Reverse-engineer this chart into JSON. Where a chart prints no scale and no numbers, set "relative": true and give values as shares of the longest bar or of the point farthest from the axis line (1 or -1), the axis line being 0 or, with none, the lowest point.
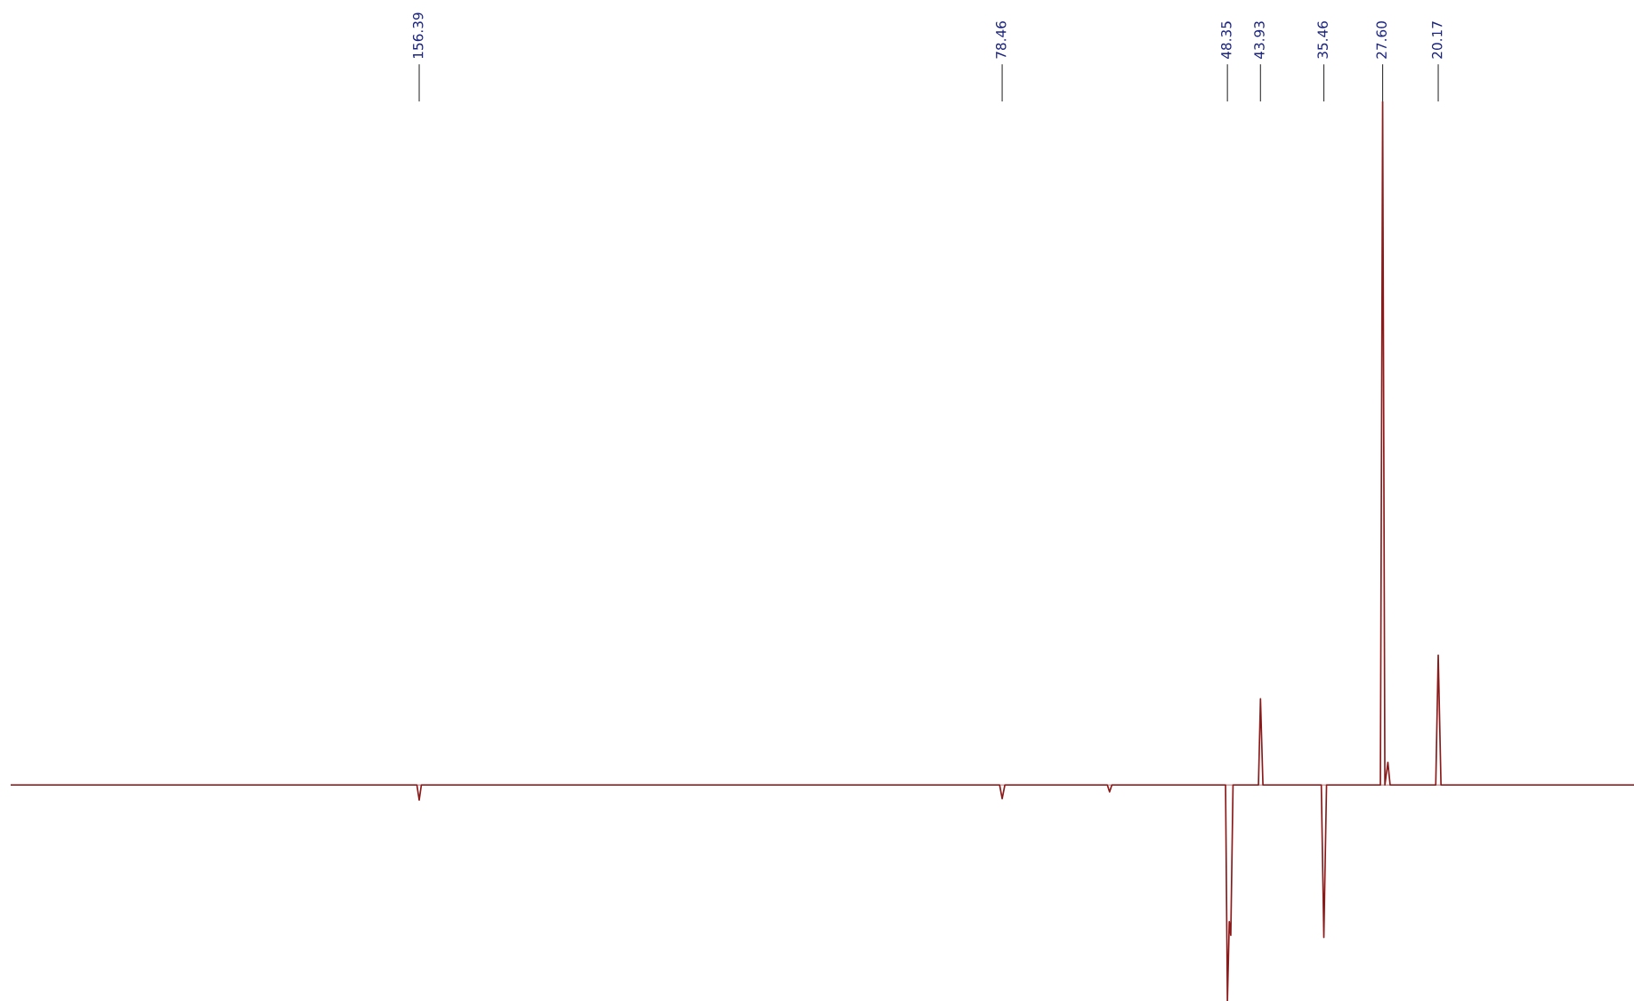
{
  "chart_data": {
    "type": "line",
    "relative": true,
    "xlim": [
      211,
      -6
    ],
    "marker": "none",
    "line_style": "solid",
    "ref_lines": [
      {
        "axis": "y",
        "value": 0,
        "color": "#d9a0a0"
      }
    ],
    "xticks": [
      156.39,
      78.46,
      48.35,
      43.93,
      35.46,
      {
        "value": 27.6,
        "label": "27.60"
      },
      20.17
    ],
    "series": [
      {
        "color": "#8b1a1a",
        "x": [
          211,
          156.7,
          156.39,
          156.1,
          78.8,
          78.46,
          78.1,
          64.4,
          64.1,
          63.8,
          48.6,
          48.35,
          48.1,
          47.9,
          47.6,
          44.2,
          43.93,
          43.6,
          35.8,
          35.46,
          35.1,
          27.9,
          27.6,
          27.3,
          26.9,
          26.6,
          20.5,
          20.17,
          19.8,
          -6
        ],
        "values": [
          0,
          0,
          -0.022,
          0,
          0,
          -0.02,
          0,
          0,
          -0.01,
          0,
          0,
          -0.316,
          -0.2,
          -0.22,
          0,
          0,
          0.126,
          0,
          0,
          -0.223,
          0,
          0,
          1,
          0,
          0.033,
          0,
          0,
          0.19,
          0,
          0
        ]
      }
    ]
  }
}
